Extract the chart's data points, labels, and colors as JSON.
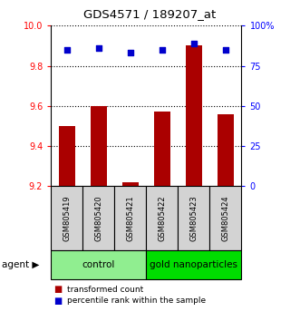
{
  "title": "GDS4571 / 189207_at",
  "samples": [
    "GSM805419",
    "GSM805420",
    "GSM805421",
    "GSM805422",
    "GSM805423",
    "GSM805424"
  ],
  "red_values": [
    9.5,
    9.6,
    9.22,
    9.57,
    9.9,
    9.56
  ],
  "blue_values": [
    85,
    86,
    83,
    85,
    89,
    85
  ],
  "ylim_left": [
    9.2,
    10.0
  ],
  "ylim_right": [
    0,
    100
  ],
  "yticks_left": [
    9.2,
    9.4,
    9.6,
    9.8,
    10.0
  ],
  "yticks_right": [
    0,
    25,
    50,
    75,
    100
  ],
  "ytick_labels_right": [
    "0",
    "25",
    "50",
    "75",
    "100%"
  ],
  "groups": [
    {
      "label": "control",
      "indices": [
        0,
        1,
        2
      ],
      "color": "#90EE90"
    },
    {
      "label": "gold nanoparticles",
      "indices": [
        3,
        4,
        5
      ],
      "color": "#00DD00"
    }
  ],
  "bar_color": "#AA0000",
  "dot_color": "#0000CC",
  "bar_width": 0.5,
  "baseline": 9.2,
  "agent_label": "agent",
  "legend_red": "transformed count",
  "legend_blue": "percentile rank within the sample",
  "sample_box_color": "#D3D3D3"
}
